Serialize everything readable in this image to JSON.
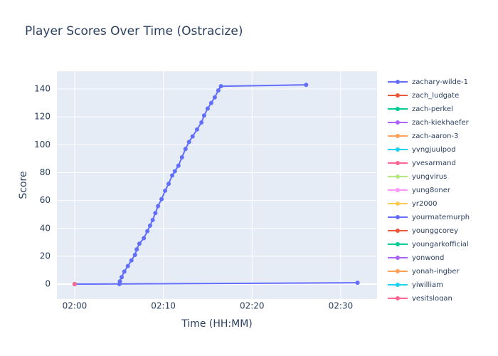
{
  "chart_data": {
    "type": "line",
    "title": "Player Scores Over Time (Ostracize)",
    "x_label": "Time (HH:MM)",
    "y_label": "Score",
    "xlim": [
      -2.0,
      34.1
    ],
    "ylim": [
      -10.7,
      152.8
    ],
    "xticks": [
      {
        "value": 0,
        "label": "02:00"
      },
      {
        "value": 10,
        "label": "02:10"
      },
      {
        "value": 20,
        "label": "02:20"
      },
      {
        "value": 30,
        "label": "02:30"
      }
    ],
    "yticks": [
      0,
      20,
      40,
      60,
      80,
      100,
      120,
      140
    ],
    "grid": true,
    "legend": "right",
    "series": [
      {
        "name": "zachary-wilde-1",
        "color": "#636efa",
        "x": [
          5.05,
          5.1,
          5.3,
          5.6,
          6.0,
          6.4,
          6.8,
          7.0,
          7.3,
          7.8,
          8.2,
          8.5,
          8.8,
          9.1,
          9.4,
          9.8,
          10.2,
          10.6,
          11.0,
          11.3,
          11.7,
          12.1,
          12.5,
          12.9,
          13.3,
          13.8,
          14.3,
          14.6,
          15.0,
          15.4,
          15.8,
          16.2,
          16.5,
          26.1
        ],
        "y": [
          0,
          2,
          5,
          9,
          13,
          17,
          21,
          25,
          29,
          33,
          38,
          42,
          46,
          51,
          56,
          61,
          67,
          72,
          78,
          81,
          85,
          91,
          97,
          102,
          106,
          111,
          116,
          121,
          126,
          130,
          134,
          139,
          142,
          143
        ]
      },
      {
        "name": "zach_ludgate",
        "color": "#EF553B",
        "x": [
          0
        ],
        "y": [
          0
        ]
      },
      {
        "name": "zach-perkel",
        "color": "#00cc96",
        "x": [
          0
        ],
        "y": [
          0
        ]
      },
      {
        "name": "zach-kiekhaefer",
        "color": "#ab63fa",
        "x": [
          0
        ],
        "y": [
          0
        ]
      },
      {
        "name": "zach-aaron-3",
        "color": "#FFA15A",
        "x": [
          0
        ],
        "y": [
          0
        ]
      },
      {
        "name": "yvngjuulpod",
        "color": "#19d3f3",
        "x": [
          0
        ],
        "y": [
          0
        ]
      },
      {
        "name": "yvesarmand",
        "color": "#FF6692",
        "x": [
          0
        ],
        "y": [
          0
        ]
      },
      {
        "name": "yungvirus",
        "color": "#B6E880",
        "x": [
          0
        ],
        "y": [
          0
        ]
      },
      {
        "name": "yung8oner",
        "color": "#FF97FF",
        "x": [
          0
        ],
        "y": [
          0
        ]
      },
      {
        "name": "yr2000",
        "color": "#FECB52",
        "x": [
          0
        ],
        "y": [
          0
        ]
      },
      {
        "name": "yourmatemurph",
        "color": "#636efa",
        "x": [
          0,
          31.9
        ],
        "y": [
          0,
          1
        ]
      },
      {
        "name": "younggcorey",
        "color": "#EF553B",
        "x": [
          0
        ],
        "y": [
          0
        ]
      },
      {
        "name": "youngarkofficial",
        "color": "#00cc96",
        "x": [
          0
        ],
        "y": [
          0
        ]
      },
      {
        "name": "yonwond",
        "color": "#ab63fa",
        "x": [
          0
        ],
        "y": [
          0
        ]
      },
      {
        "name": "yonah-ingber",
        "color": "#FFA15A",
        "x": [
          0
        ],
        "y": [
          0
        ]
      },
      {
        "name": "yiwilliam",
        "color": "#19d3f3",
        "x": [
          0
        ],
        "y": [
          0
        ]
      },
      {
        "name": "yesitslogan",
        "color": "#FF6692",
        "x": [
          0
        ],
        "y": [
          0
        ]
      }
    ]
  }
}
